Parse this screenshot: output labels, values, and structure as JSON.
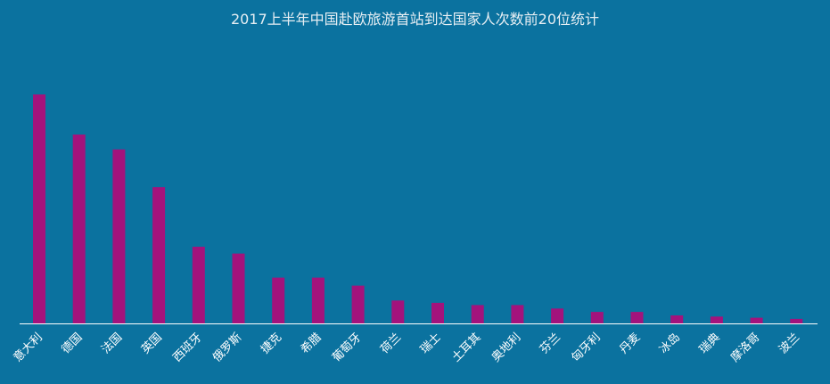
{
  "colors": {
    "background": "#0B729F",
    "bar": "#A3137C",
    "axis": "#FFFFFF",
    "text": "#FFFFFF"
  },
  "chart_data": {
    "type": "bar",
    "title": "2017上半年中国赴欧旅游首站到达国家人次数前20位统计",
    "xlabel": "",
    "ylabel": "",
    "grid": false,
    "legend": "none",
    "categories": [
      "意大利",
      "德国",
      "法国",
      "英国",
      "西班牙",
      "俄罗斯",
      "捷克",
      "希腊",
      "葡萄牙",
      "荷兰",
      "瑞士",
      "土耳其",
      "奥地利",
      "芬兰",
      "匈牙利",
      "丹麦",
      "冰岛",
      "瑞典",
      "摩洛哥",
      "波兰"
    ],
    "values": [
      100,
      82.5,
      76,
      59.5,
      33.5,
      30.5,
      20,
      20,
      16.5,
      10,
      9,
      8,
      8,
      6.5,
      5,
      5,
      3.5,
      3,
      2.5,
      2
    ],
    "ylim": [
      0,
      100
    ]
  }
}
